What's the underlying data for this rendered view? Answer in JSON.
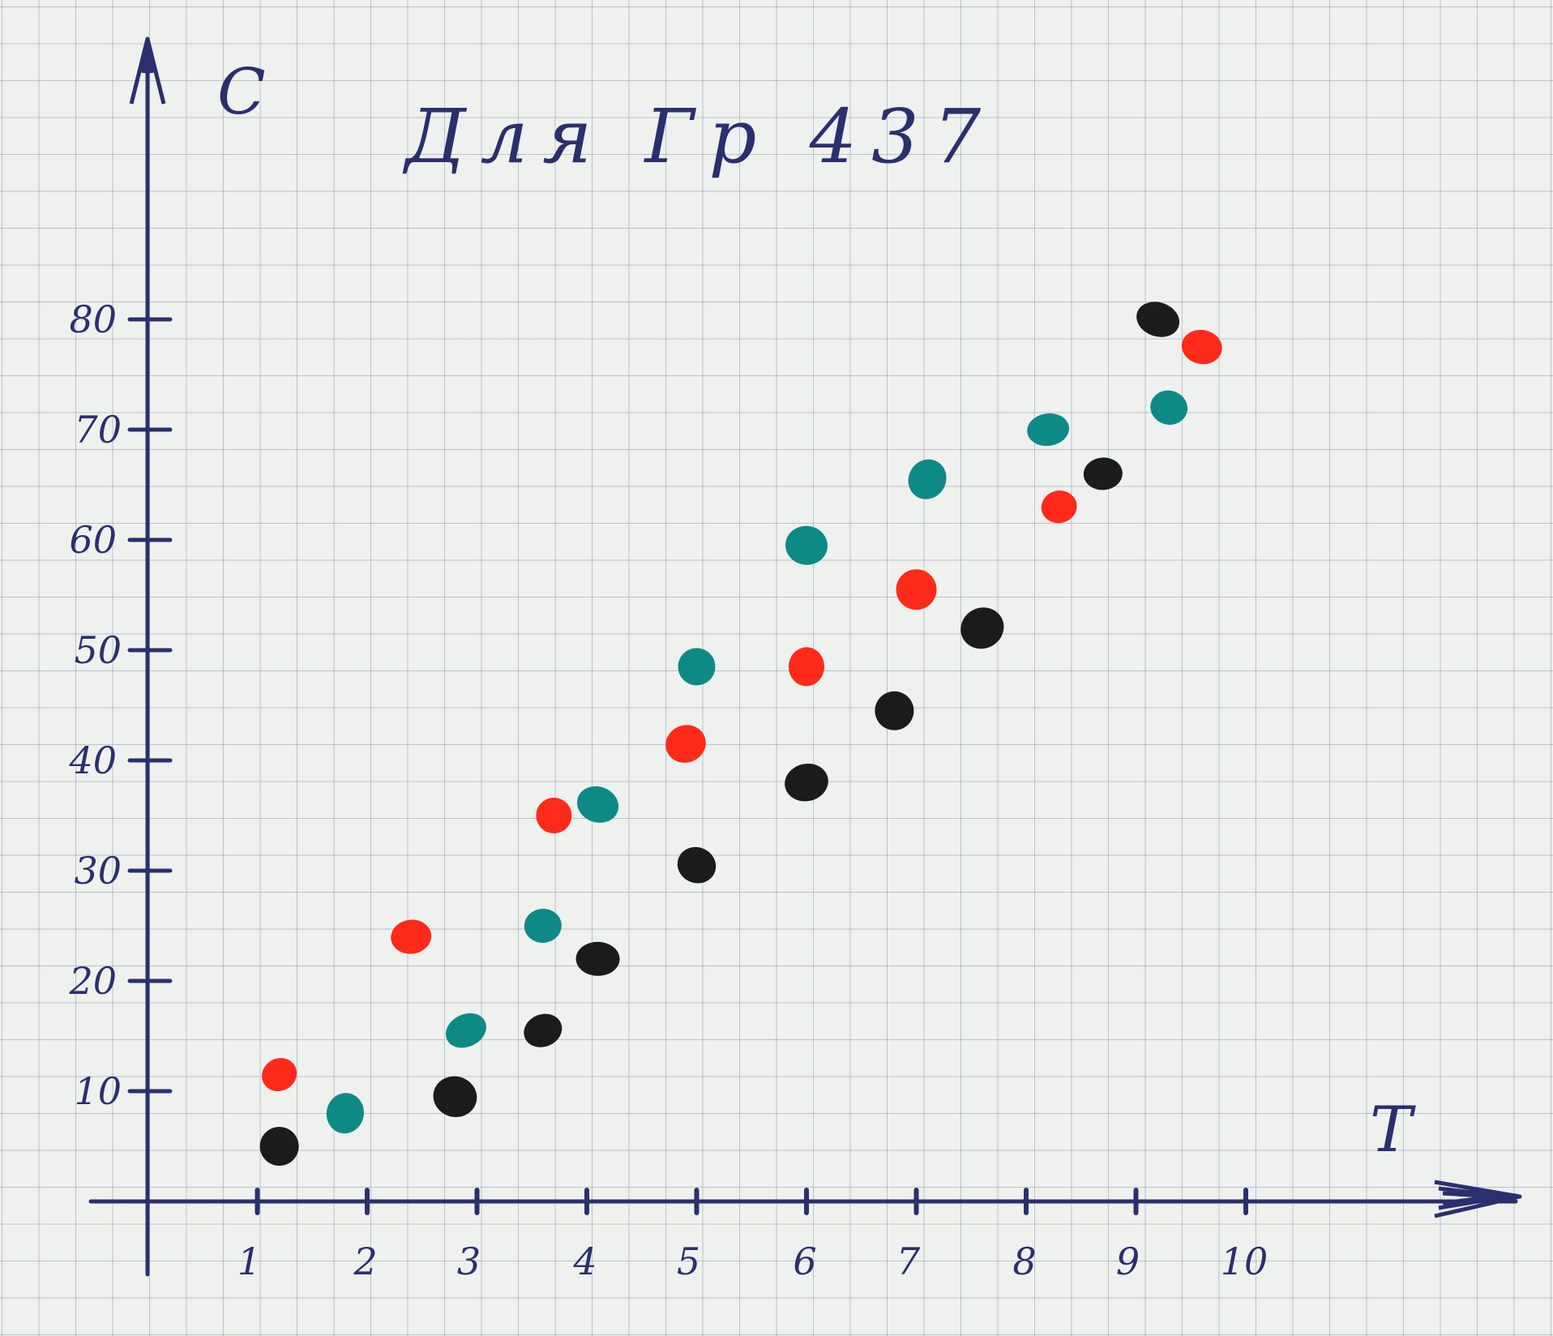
{
  "chart_data": {
    "type": "scatter",
    "title": "Для Гр 437",
    "xlabel": "T",
    "ylabel": "C",
    "xlim": [
      0,
      11.5
    ],
    "ylim": [
      -5,
      95
    ],
    "x_ticks": [
      "1",
      "2",
      "3",
      "4",
      "5",
      "6",
      "7",
      "8",
      "9",
      "10"
    ],
    "y_ticks": [
      "10",
      "20",
      "30",
      "40",
      "50",
      "60",
      "70",
      "80"
    ],
    "grid": true,
    "legend": "none",
    "series": [
      {
        "color": "#ff2a1a",
        "points": [
          [
            1.2,
            11.5
          ],
          [
            2.4,
            24
          ],
          [
            3.7,
            35
          ],
          [
            4.9,
            41.5
          ],
          [
            6.0,
            48.5
          ],
          [
            7.0,
            55.5
          ],
          [
            8.3,
            63
          ],
          [
            9.6,
            77.5
          ]
        ]
      },
      {
        "color": "#0e8a86",
        "points": [
          [
            1.8,
            8
          ],
          [
            2.9,
            15.5
          ],
          [
            3.6,
            25
          ],
          [
            4.1,
            36
          ],
          [
            5.0,
            48.5
          ],
          [
            6.0,
            59.5
          ],
          [
            7.1,
            65.5
          ],
          [
            8.2,
            70
          ],
          [
            9.3,
            72
          ]
        ]
      },
      {
        "color": "#1b1b1b",
        "points": [
          [
            1.2,
            5
          ],
          [
            2.8,
            9.5
          ],
          [
            3.6,
            15.5
          ],
          [
            4.1,
            22
          ],
          [
            5.0,
            30.5
          ],
          [
            6.0,
            38
          ],
          [
            6.8,
            44.5
          ],
          [
            7.6,
            52
          ],
          [
            8.7,
            66
          ],
          [
            9.2,
            80
          ]
        ]
      }
    ]
  }
}
